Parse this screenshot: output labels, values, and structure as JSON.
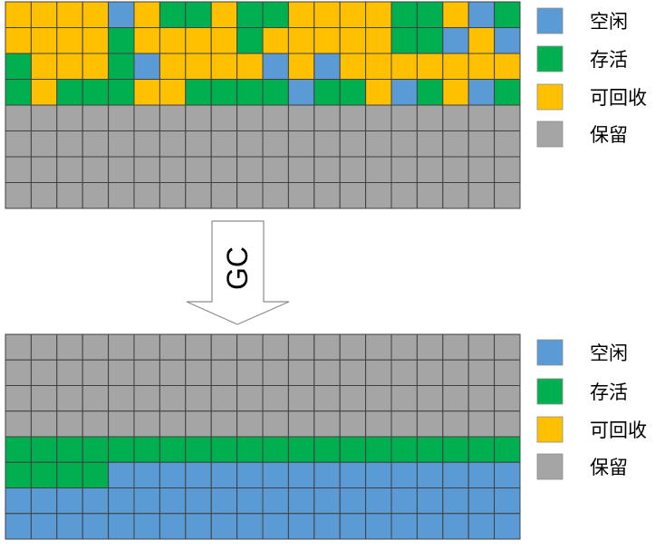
{
  "colors": {
    "free": "#5B9BD5",
    "live": "#00B050",
    "reclaimable": "#FFC000",
    "reserved": "#A5A5A5",
    "grid_line": "#404040"
  },
  "before": {
    "rows": [
      "YYYYBYGGYGGYYYYGGYBG",
      "YYYYGYYYYGYYYYYGGBYB",
      "GYYYGBYYYYBYBYYYYYYY",
      "GYGGGYYGGGGBGGYBGYBG",
      "RRRRRRRRRRRRRRRRRRRR",
      "RRRRRRRRRRRRRRRRRRRR",
      "RRRRRRRRRRRRRRRRRRRR",
      "RRRRRRRRRRRRRRRRRRRR"
    ]
  },
  "after": {
    "rows": [
      "RRRRRRRRRRRRRRRRRRRR",
      "RRRRRRRRRRRRRRRRRRRR",
      "RRRRRRRRRRRRRRRRRRRR",
      "RRRRRRRRRRRRRRRRRRRR",
      "GGGGGGGGGGGGGGGGGGGG",
      "GGGGBBBBBBBBBBBBBBBB",
      "BBBBBBBBBBBBBBBBBBBB",
      "BBBBBBBBBBBBBBBBBBBB"
    ]
  },
  "legend": {
    "items": [
      {
        "key": "free",
        "label": "空闲"
      },
      {
        "key": "live",
        "label": "存活"
      },
      {
        "key": "reclaimable",
        "label": "可回收"
      },
      {
        "key": "reserved",
        "label": "保留"
      }
    ]
  },
  "arrow": {
    "label": "GC"
  }
}
